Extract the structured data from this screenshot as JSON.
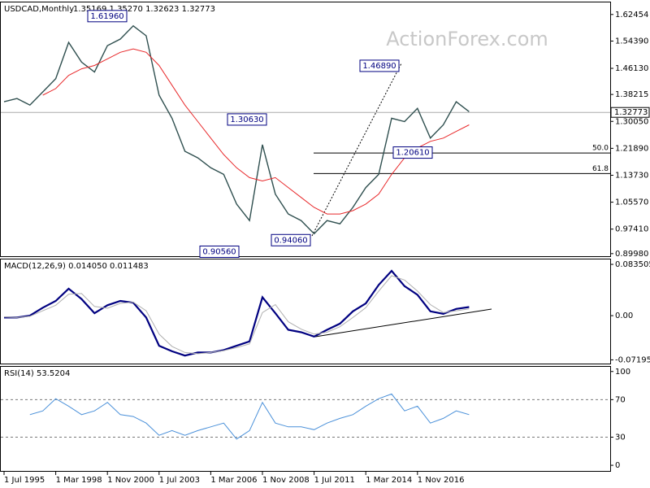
{
  "chart_data": [
    {
      "type": "line",
      "title": "USDCAD,Monthly",
      "subtitle": "1.35169 1.35270 1.32623 1.32773",
      "watermark": "ActionForex.com",
      "series": [
        {
          "color": "#2f4f4f",
          "values": [
            1.36,
            1.37,
            1.35,
            1.39,
            1.43,
            1.54,
            1.48,
            1.45,
            1.53,
            1.55,
            1.59,
            1.56,
            1.38,
            1.31,
            1.21,
            1.19,
            1.16,
            1.14,
            1.05,
            1.0,
            1.23,
            1.08,
            1.02,
            1.0,
            0.96,
            1.0,
            0.99,
            1.04,
            1.1,
            1.14,
            1.31,
            1.3,
            1.34,
            1.25,
            1.29,
            1.36,
            1.33
          ]
        },
        {
          "color": "#e8282a",
          "values": [
            null,
            null,
            null,
            1.38,
            1.4,
            1.44,
            1.46,
            1.47,
            1.49,
            1.51,
            1.52,
            1.51,
            1.47,
            1.41,
            1.35,
            1.3,
            1.25,
            1.2,
            1.16,
            1.13,
            1.12,
            1.13,
            1.1,
            1.07,
            1.04,
            1.02,
            1.02,
            1.03,
            1.05,
            1.08,
            1.14,
            1.19,
            1.22,
            1.24,
            1.25,
            1.27,
            1.29
          ]
        }
      ],
      "ylim": [
        0.892,
        1.661
      ],
      "yticks": [
        1.62454,
        {
          "value": 1.5439,
          "label": "1.54390"
        },
        {
          "value": 1.4613,
          "label": "1.46130"
        },
        1.38215,
        {
          "value": 1.3005,
          "label": "1.30050"
        },
        {
          "value": 1.2189,
          "label": "1.21890"
        },
        {
          "value": 1.1373,
          "label": "1.13730"
        },
        {
          "value": 1.0557,
          "label": "1.05570"
        },
        {
          "value": 0.9741,
          "label": "0.97410"
        },
        {
          "value": 0.8998,
          "label": "0.89980"
        }
      ],
      "last_price": 1.32773,
      "annotations": [
        {
          "value": 1.6196,
          "label": "1.61960"
        },
        {
          "value": 1.3063,
          "label": "1.30630"
        },
        {
          "value": 0.9056,
          "label": "0.90560"
        },
        {
          "value": 0.9406,
          "label": "0.94060"
        },
        {
          "value": 1.4689,
          "label": "1.46890"
        },
        {
          "value": 1.2061,
          "label": "1.20610"
        }
      ],
      "levels": [
        {
          "value": 1.20475,
          "label": "50.0"
        },
        {
          "value": 1.14241,
          "label": "61.8"
        }
      ]
    },
    {
      "type": "line",
      "title": "MACD(12,26,9) 0.014050 0.011483",
      "series": [
        {
          "color": "#000080",
          "values": [
            -0.003,
            -0.003,
            0,
            0.013,
            0.024,
            0.044,
            0.027,
            0.004,
            0.017,
            0.024,
            0.021,
            -0.003,
            -0.049,
            -0.058,
            -0.065,
            -0.06,
            -0.06,
            -0.056,
            -0.049,
            -0.042,
            0.03,
            0.004,
            -0.023,
            -0.027,
            -0.034,
            -0.023,
            -0.013,
            0.007,
            0.02,
            0.05,
            0.073,
            0.048,
            0.034,
            0.007,
            0.003,
            0.011,
            0.014
          ]
        },
        {
          "color": "#b0b0b0",
          "values": [
            -0.002,
            -0.003,
            -0.001,
            0.008,
            0.017,
            0.035,
            0.036,
            0.015,
            0.012,
            0.02,
            0.022,
            0.008,
            -0.03,
            -0.05,
            -0.06,
            -0.062,
            -0.06,
            -0.057,
            -0.052,
            -0.046,
            0.005,
            0.018,
            -0.01,
            -0.022,
            -0.03,
            -0.027,
            -0.018,
            -0.003,
            0.013,
            0.04,
            0.065,
            0.058,
            0.04,
            0.018,
            0.005,
            0.008,
            0.011
          ]
        }
      ],
      "ylim": [
        -0.078,
        0.0915
      ],
      "yticks": [
        0.083505,
        {
          "value": 0,
          "label": "0.00"
        },
        -0.07195
      ]
    },
    {
      "type": "line",
      "title": "RSI(14) 53.5204",
      "categories": [
        "1 Jul 1995",
        null,
        null,
        null,
        "1 Mar 1998",
        null,
        null,
        null,
        "1 Nov 2000",
        null,
        null,
        null,
        "1 Jul 2003",
        null,
        null,
        null,
        "1 Mar 2006",
        null,
        null,
        null,
        "1 Nov 2008",
        null,
        null,
        null,
        "1 Jul 2011",
        null,
        null,
        null,
        "1 Mar 2014",
        null,
        null,
        null,
        "1 Nov 2016",
        null,
        null,
        null,
        null
      ],
      "series": [
        {
          "color": "#4a90d9",
          "values": [
            null,
            null,
            54,
            58,
            71,
            63,
            54,
            58,
            67,
            54,
            52,
            45,
            32,
            37,
            32,
            37,
            41,
            45,
            28,
            37,
            67,
            45,
            41,
            41,
            38,
            45,
            50,
            54,
            63,
            71,
            76,
            58,
            63,
            45,
            50,
            58,
            54
          ]
        }
      ],
      "ylim": [
        -6,
        105
      ],
      "yticks": [
        100,
        70,
        30,
        0
      ],
      "grid": "inner"
    }
  ]
}
